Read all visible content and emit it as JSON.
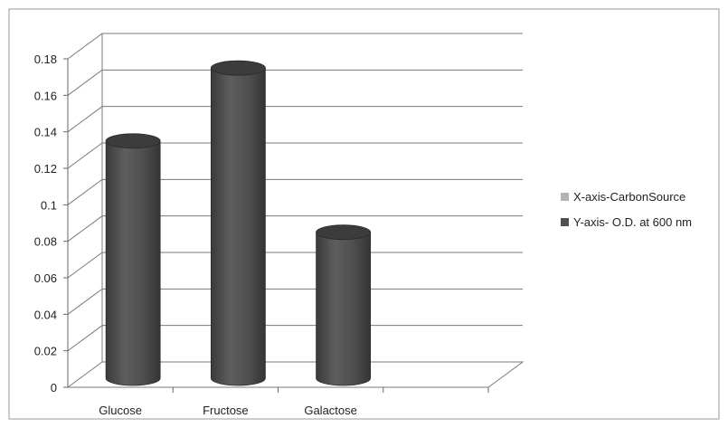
{
  "chart_data": {
    "type": "bar",
    "style": "3d-cylinder",
    "categories": [
      "Glucose",
      "Fructose",
      "Galactose",
      ""
    ],
    "series": [
      {
        "name": "X-axis-CarbonSource",
        "values": [
          null,
          null,
          null,
          null
        ]
      },
      {
        "name": "Y-axis- O.D. at 600 nm",
        "values": [
          0.13,
          0.17,
          0.08,
          null
        ]
      }
    ],
    "y_ticks": [
      "0",
      "0.02",
      "0.04",
      "0.06",
      "0.08",
      "0.1",
      "0.12",
      "0.14",
      "0.16",
      "0.18"
    ],
    "ylim": [
      0,
      0.18
    ],
    "grid": true,
    "legend_position": "right",
    "colors": {
      "series_0": "#b4b4b4",
      "series_1": "#505050",
      "series_1_top": "#3c3c3c",
      "gridline": "#7a7a7a",
      "frame": "#9a9a9a"
    }
  }
}
